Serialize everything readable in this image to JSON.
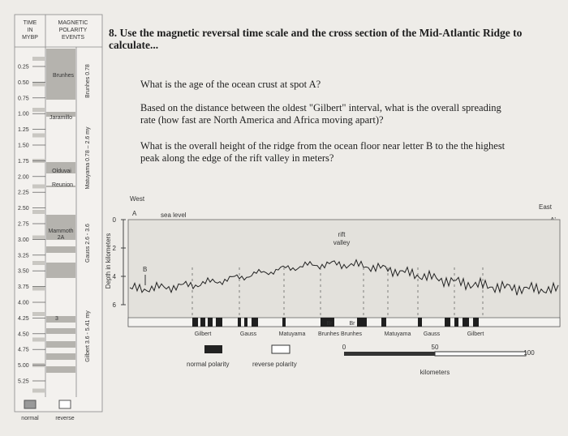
{
  "time_scale": {
    "time_header": [
      "TIME",
      "IN",
      "MYBP"
    ],
    "events_header": [
      "MAGNETIC",
      "POLARITY",
      "EVENTS"
    ],
    "ticks": [
      "0.25",
      "0.50",
      "0.75",
      "1.00",
      "1.25",
      "1.50",
      "1.75",
      "2.00",
      "2.25",
      "2.50",
      "2.75",
      "3.00",
      "3.25",
      "3.50",
      "3.75",
      "4.00",
      "4.25",
      "4.50",
      "4.75",
      "5.00",
      "5.25"
    ],
    "events": [
      "Brunhes",
      "Jaramillo",
      "Olduvai",
      "Reunion",
      "Mammoth",
      "2A",
      "3"
    ],
    "epochs": [
      "Brunhes 0.78",
      "Matuyama  0.78 – 2.6 my",
      "Gauss  2.6 - 3.6",
      "Gilbert  3.6 - 5.41 my"
    ],
    "legend": [
      "normal",
      "reverse"
    ]
  },
  "header": {
    "title_lines": [
      "8. Use the magnetic reversal time scale and the cross section of the Mid-Atlantic Ridge to",
      "calculate..."
    ]
  },
  "questions": [
    [
      "What is the age of the ocean crust at spot A?"
    ],
    [
      "Based on the distance between the oldest \"Gilbert\" interval, what is the overall spreading",
      "rate (how fast are North America and Africa moving apart)?"
    ],
    [
      "What is the overall height of the ridge from the ocean floor near letter B to the the highest",
      "peak along the edge of the rift valley in meters?"
    ]
  ],
  "cross_section": {
    "west": "West",
    "east": "East",
    "point_a": "A",
    "point_a_prime": "A'",
    "sea_level": "sea level",
    "depth_label": "Depth in kilometers",
    "depth_ticks": [
      "0",
      "2",
      "4",
      "6"
    ],
    "point_b": "B",
    "rift_valley": [
      "rift",
      "valley"
    ],
    "band_labels": [
      "Gilbert",
      "Gauss",
      "Matuyama",
      "Br",
      "Br",
      "Brunhes",
      "Brunhes",
      "Matuyama",
      "Gauss",
      "Gilbert"
    ],
    "legend": [
      "normal polarity",
      "reverse polarity"
    ],
    "scale_ticks": [
      "0",
      "50",
      "100"
    ],
    "scale_unit": "kilometers"
  }
}
